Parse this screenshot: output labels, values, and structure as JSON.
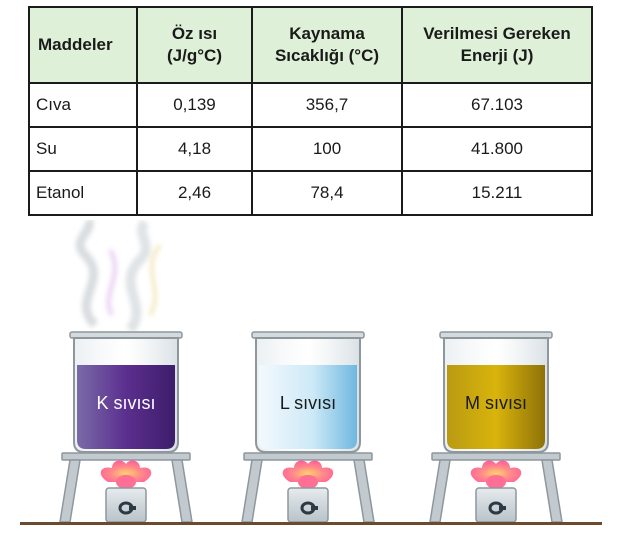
{
  "table": {
    "headers": [
      [
        "Maddeler"
      ],
      [
        "Öz ısı",
        "(J/g°C)"
      ],
      [
        "Kaynama",
        "Sıcaklığı (°C)"
      ],
      [
        "Verilmesi Gereken",
        "Enerji (J)"
      ]
    ],
    "rows": [
      [
        "Cıva",
        "0,139",
        "356,7",
        "67.103"
      ],
      [
        "Su",
        "4,18",
        "100",
        "41.800"
      ],
      [
        "Etanol",
        "2,46",
        "78,4",
        "15.211"
      ]
    ]
  },
  "beakers": [
    {
      "label": "K sıvısı",
      "liquid_color": "#6a3d96",
      "text_color": "#ffffff",
      "steam": true
    },
    {
      "label": "L sıvısı",
      "liquid_color": "#bfe2f4",
      "text_color": "#1a1a1a",
      "steam": false
    },
    {
      "label": "M sıvısı",
      "liquid_color": "#c9a60c",
      "text_color": "#1a1a1a",
      "steam": false
    }
  ],
  "colors": {
    "header_bg": "#dff0d8",
    "table_border": "#1b1b1b",
    "ground": "#6b4a2f",
    "flame": "#ff6f95"
  },
  "icons": [
    "beaker-icon",
    "tripod-icon",
    "burner-icon",
    "flame-icon",
    "steam-icon"
  ]
}
